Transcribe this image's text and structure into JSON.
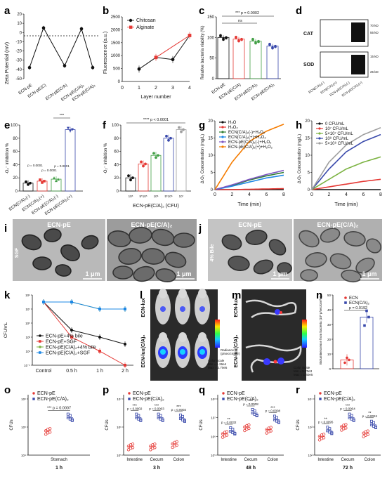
{
  "panels": {
    "a": {
      "label": "a",
      "ylabel": "Zeta Potential (mV)",
      "yticks": [
        "20",
        "10",
        "0",
        "-10",
        "-20",
        "-30",
        "-40",
        "-50"
      ],
      "categories": [
        "ECN-pE",
        "ECN-pE(C)",
        "ECN-pE(C/A)",
        "ECN-pE(C/A)₂",
        "ECN-pE(C/A)₃"
      ]
    },
    "b": {
      "label": "b",
      "ylabel": "Fluorescence (a.u.)",
      "xlabel": "Layer number",
      "yticks": [
        "2500",
        "2000",
        "1500",
        "1000",
        "500",
        "0"
      ],
      "xticks": [
        "0",
        "1",
        "2",
        "3",
        "4"
      ],
      "legend": [
        "Chitosan",
        "Alginate"
      ]
    },
    "c": {
      "label": "c",
      "ylabel": "Relative bacteria viability (%)",
      "sig_top": "*** p = 0.0002",
      "sig_ns": "ns",
      "yticks": [
        "150",
        "100",
        "50",
        "0"
      ],
      "categories": [
        "ECN-pE",
        "ECN-pE(C/A)",
        "ECN-pE(C/A)₂",
        "ECN-pE(C/A)₃"
      ]
    },
    "d": {
      "label": "d",
      "rows": [
        "CAT",
        "SOD"
      ],
      "mw": [
        "70 kD",
        "55 kD",
        "15 kD",
        "25 kD"
      ],
      "categories": [
        "ECN(C/A)₂(-)",
        "ECN(C/A)₂(+)",
        "ECN-pE(C/A)₂(-)",
        "ECN-pE(C/A)₂(+)"
      ]
    },
    "e": {
      "label": "e",
      "ylabel": "·O₂⁻ inhibition %",
      "yticks": [
        "100",
        "80",
        "60",
        "40",
        "20",
        "0"
      ],
      "sig": [
        "***",
        "p = 0.0001",
        "p = 0.0001",
        "p = 0.0001"
      ],
      "categories": [
        "ECN(C/A)₂(-)",
        "ECN(C/A)₂(+)",
        "ECN-pE(C/A)₂(-)",
        "ECN-pE(C/A)₂(+)"
      ]
    },
    "f": {
      "label": "f",
      "ylabel": "·O₂⁻ inhibition %",
      "xlabel": "ECN-pE(C/A)₂ (CFU)",
      "sig": "**** p < 0.0001",
      "yticks": [
        "100",
        "80",
        "60",
        "40",
        "20",
        "0"
      ],
      "xticks": [
        "10⁵",
        "5*10⁵",
        "10⁶",
        "5*10⁶",
        "10⁷"
      ]
    },
    "g": {
      "label": "g",
      "ylabel": "Δ O₂ Concentration (mg/L)",
      "xlabel": "Time (min)",
      "yticks": [
        "20",
        "15",
        "10",
        "5",
        "0"
      ],
      "xticks": [
        "0",
        "2",
        "4",
        "6",
        "8"
      ],
      "legend": [
        "H₂O",
        "H₂O₂",
        "ECN(C/A)₂(-)+H₂O₂",
        "ECN(C/A)₂(+)+H₂O₂",
        "ECN-pE(C/A)₂(-)+H₂O₂",
        "ECN-pE(C/A)₂(+)+H₂O₂"
      ]
    },
    "h": {
      "label": "h",
      "ylabel": "Δ O₂ Concentration (mg/L)",
      "xlabel": "Time (min)",
      "yticks": [
        "20",
        "15",
        "10",
        "5",
        "0"
      ],
      "xticks": [
        "0",
        "2",
        "4",
        "6",
        "8"
      ],
      "legend": [
        "0 CFU/mL",
        "10⁷ CFU/mL",
        "5×10⁷ CFU/mL",
        "10⁸ CFU/mL",
        "5×10⁸ CFU/mL"
      ]
    },
    "i": {
      "label": "i",
      "titles": [
        "ECN-pE",
        "ECN-pE(C/A)₂"
      ],
      "side": "SGF",
      "scale": "1 μm"
    },
    "j": {
      "label": "j",
      "titles": [
        "ECN-pE",
        "ECN-pE(C/A)₂"
      ],
      "side": "4% Bile",
      "scale": "1 μm"
    },
    "k": {
      "label": "k",
      "ylabel": "CFU/mL",
      "yticks": [
        "10⁹",
        "10⁷",
        "10⁵",
        "10³",
        "10¹",
        "10⁻¹"
      ],
      "xticks": [
        "Control",
        "0.5 h",
        "1 h",
        "2 h"
      ],
      "legend": [
        "ECN-pE+4% bile",
        "ECN-pE+SGF",
        "ECN-pE(C/A)₂+4% bile",
        "ECN-pE(C/A)₂+SGF"
      ]
    },
    "l": {
      "label": "l",
      "rows": [
        "ECN-lux",
        "ECN-lux(C/A)₂"
      ],
      "scale_title": "Radiance",
      "scale_units": "(p/sec/cm²/sr)",
      "color_scale": "Color Scale",
      "min": "Min = 1.26e4",
      "max": "Max = 2.70e5"
    },
    "m": {
      "label": "m",
      "rows": [
        "ECN-lux",
        "ECN-lux(C/A)₂"
      ],
      "scale_title": "Radiance",
      "scale_units": "(p/sec/cm²/sr)",
      "color_scale": "Color Scale",
      "min": "Min = 5.70e3",
      "max": "Max = 1.40e5"
    },
    "n": {
      "label": "n",
      "ylabel": "Bioluminescence from bacteria (10³ p/sec/cm²/sr)",
      "sig": "p = 0.0192",
      "legend": [
        "ECN",
        "ECN(C/A)₂"
      ],
      "yticks": [
        "50",
        "40",
        "30",
        "20",
        "10",
        "0"
      ]
    },
    "o": {
      "label": "o",
      "ylabel": "CFUs",
      "sig": "*** p = 0.0007",
      "legend": [
        "ECN-pE",
        "ECN-pE(C/A)₂"
      ],
      "yticks": [
        "10⁶",
        "10⁵",
        "10⁴"
      ],
      "xticks": [
        "Stomach"
      ],
      "time": "1 h"
    },
    "p": {
      "label": "p",
      "ylabel": "CFUs",
      "sig": [
        "***",
        "p = 0.0002",
        "***",
        "p = 0.0003",
        "***",
        "p = 0.0002"
      ],
      "legend": [
        "ECN-pE",
        "ECN-pE(C/A)₂"
      ],
      "yticks": [
        "10⁷",
        "10⁶",
        "10⁵"
      ],
      "xticks": [
        "Intestine",
        "Cecum",
        "Colon"
      ],
      "time": "3 h"
    },
    "q": {
      "label": "q",
      "ylabel": "CFUs",
      "sig": [
        "**",
        "p = 0.0032",
        "***",
        "p = 0.0008",
        "***",
        "p = 0.0008"
      ],
      "legend": [
        "ECN-pE",
        "ECN-pE(C/A)₂"
      ],
      "yticks": [
        "10⁸",
        "10⁷",
        "10⁶",
        "10⁵"
      ],
      "xticks": [
        "Intestine",
        "Cecum",
        "Colon"
      ],
      "time": "48 h"
    },
    "r": {
      "label": "r",
      "ylabel": "CFUs",
      "sig": [
        "**",
        "p = 0.0095",
        "***",
        "p = 0.0004",
        "**",
        "p = 0.0024"
      ],
      "legend": [
        "ECN-pE",
        "ECN-pE(C/A)₂"
      ],
      "yticks": [
        "10⁴",
        "10³",
        "10²"
      ],
      "xticks": [
        "Intestine",
        "Cecum",
        "Colon"
      ],
      "time": "72 h"
    }
  },
  "chart_data": [
    {
      "panel": "a",
      "type": "line",
      "categories": [
        "ECN-pE",
        "ECN-pE(C)",
        "ECN-pE(C/A)",
        "ECN-pE(C/A)₂",
        "ECN-pE(C/A)₃"
      ],
      "values": [
        -38,
        5,
        -36,
        4,
        -38
      ],
      "ylim": [
        -50,
        20
      ]
    },
    {
      "panel": "b",
      "type": "line",
      "x": [
        1,
        2,
        3,
        4
      ],
      "series": [
        {
          "name": "Chitosan",
          "x": [
            1,
            3
          ],
          "values": [
            480,
            850
          ]
        },
        {
          "name": "Alginate",
          "x": [
            2,
            4
          ],
          "values": [
            930,
            1780
          ]
        }
      ],
      "ylim": [
        0,
        2500
      ]
    },
    {
      "panel": "c",
      "type": "bar",
      "categories": [
        "ECN-pE",
        "ECN-pE(C/A)",
        "ECN-pE(C/A)₂",
        "ECN-pE(C/A)₃"
      ],
      "values": [
        100,
        96,
        91,
        79
      ],
      "ylim": [
        0,
        150
      ]
    },
    {
      "panel": "e",
      "type": "bar",
      "categories": [
        "ECN(C/A)₂(-)",
        "ECN(C/A)₂(+)",
        "ECN-pE(C/A)₂(-)",
        "ECN-pE(C/A)₂(+)"
      ],
      "values": [
        12,
        15,
        18,
        93
      ],
      "ylim": [
        0,
        100
      ]
    },
    {
      "panel": "f",
      "type": "bar",
      "categories": [
        "10⁵",
        "5*10⁵",
        "10⁶",
        "5*10⁶",
        "10⁷"
      ],
      "values": [
        20,
        41,
        54,
        80,
        93
      ],
      "ylim": [
        0,
        100
      ]
    },
    {
      "panel": "g",
      "type": "line",
      "x": [
        0,
        2,
        4,
        6,
        8
      ],
      "ylim": [
        0,
        20
      ],
      "series": [
        {
          "name": "H₂O",
          "values": [
            0,
            0,
            0,
            0,
            0
          ]
        },
        {
          "name": "H₂O₂",
          "values": [
            0,
            0,
            0.1,
            0.2,
            0.3
          ]
        },
        {
          "name": "ECN(C/A)₂(-)+H₂O₂",
          "values": [
            0,
            1.2,
            2.8,
            4,
            5
          ]
        },
        {
          "name": "ECN(C/A)₂(+)+H₂O₂",
          "values": [
            0,
            1,
            2.2,
            3.4,
            4.2
          ]
        },
        {
          "name": "ECN-pE(C/A)₂(-)+H₂O₂",
          "values": [
            0,
            1.4,
            3,
            4.4,
            5.6
          ]
        },
        {
          "name": "ECN-pE(C/A)₂(+)+H₂O₂",
          "values": [
            0,
            8,
            14,
            17,
            19
          ]
        }
      ]
    },
    {
      "panel": "h",
      "type": "line",
      "x": [
        0,
        2,
        4,
        6,
        8
      ],
      "ylim": [
        0,
        20
      ],
      "series": [
        {
          "name": "0 CFU/mL",
          "values": [
            0,
            0,
            0,
            0,
            0
          ]
        },
        {
          "name": "10⁷ CFU/mL",
          "values": [
            0,
            0.8,
            1.6,
            2.4,
            3
          ]
        },
        {
          "name": "5×10⁷ CFU/mL",
          "values": [
            0,
            3,
            6,
            8,
            9.5
          ]
        },
        {
          "name": "10⁸ CFU/mL",
          "values": [
            0,
            6,
            11,
            14,
            16
          ]
        },
        {
          "name": "5×10⁸ CFU/mL",
          "values": [
            0,
            8,
            13,
            16,
            18
          ]
        }
      ]
    },
    {
      "panel": "k",
      "type": "line",
      "x": [
        "Control",
        "0.5 h",
        "1 h",
        "2 h"
      ],
      "log": true,
      "series": [
        {
          "name": "ECN-pE+4% bile",
          "values": [
            100000000.0,
            10000.0,
            1000.0,
            100.0
          ]
        },
        {
          "name": "ECN-pE+SGF",
          "values": [
            100000000.0,
            1000.0,
            10.0,
            0.1
          ]
        },
        {
          "name": "ECN-pE(C/A)₂+4% bile",
          "values": [
            100000000.0,
            100000000.0,
            10000000.0,
            10000000.0
          ]
        },
        {
          "name": "ECN-pE(C/A)₂+SGF",
          "values": [
            100000000.0,
            100000000.0,
            10000000.0,
            10000000.0
          ]
        }
      ]
    },
    {
      "panel": "n",
      "type": "bar",
      "categories": [
        "ECN",
        "ECN(C/A)₂"
      ],
      "values": [
        6,
        35
      ],
      "ylim": [
        0,
        50
      ]
    },
    {
      "panel": "o",
      "type": "scatter",
      "categories": [
        "Stomach"
      ],
      "series": [
        {
          "name": "ECN-pE",
          "values": [
            200000.0
          ]
        },
        {
          "name": "ECN-pE(C/A)₂",
          "values": [
            1000000.0
          ]
        }
      ]
    },
    {
      "panel": "p",
      "type": "scatter",
      "categories": [
        "Intestine",
        "Cecum",
        "Colon"
      ],
      "series": [
        {
          "name": "ECN-pE",
          "values": [
            300000.0,
            300000.0,
            400000.0
          ]
        },
        {
          "name": "ECN-pE(C/A)₂",
          "values": [
            10000000.0,
            10000000.0,
            9000000.0
          ]
        }
      ]
    },
    {
      "panel": "q",
      "type": "scatter",
      "categories": [
        "Intestine",
        "Cecum",
        "Colon"
      ],
      "series": [
        {
          "name": "ECN-pE",
          "values": [
            1000000.0,
            3000000.0,
            2000000.0
          ]
        },
        {
          "name": "ECN-pE(C/A)₂",
          "values": [
            1500000.0,
            30000000.0,
            10000000.0
          ]
        }
      ]
    },
    {
      "panel": "r",
      "type": "scatter",
      "categories": [
        "Intestine",
        "Cecum",
        "Colon"
      ],
      "series": [
        {
          "name": "ECN-pE",
          "values": [
            600,
            2000,
            900
          ]
        },
        {
          "name": "ECN-pE(C/A)₂",
          "values": [
            1200,
            6000,
            2500
          ]
        }
      ]
    }
  ]
}
